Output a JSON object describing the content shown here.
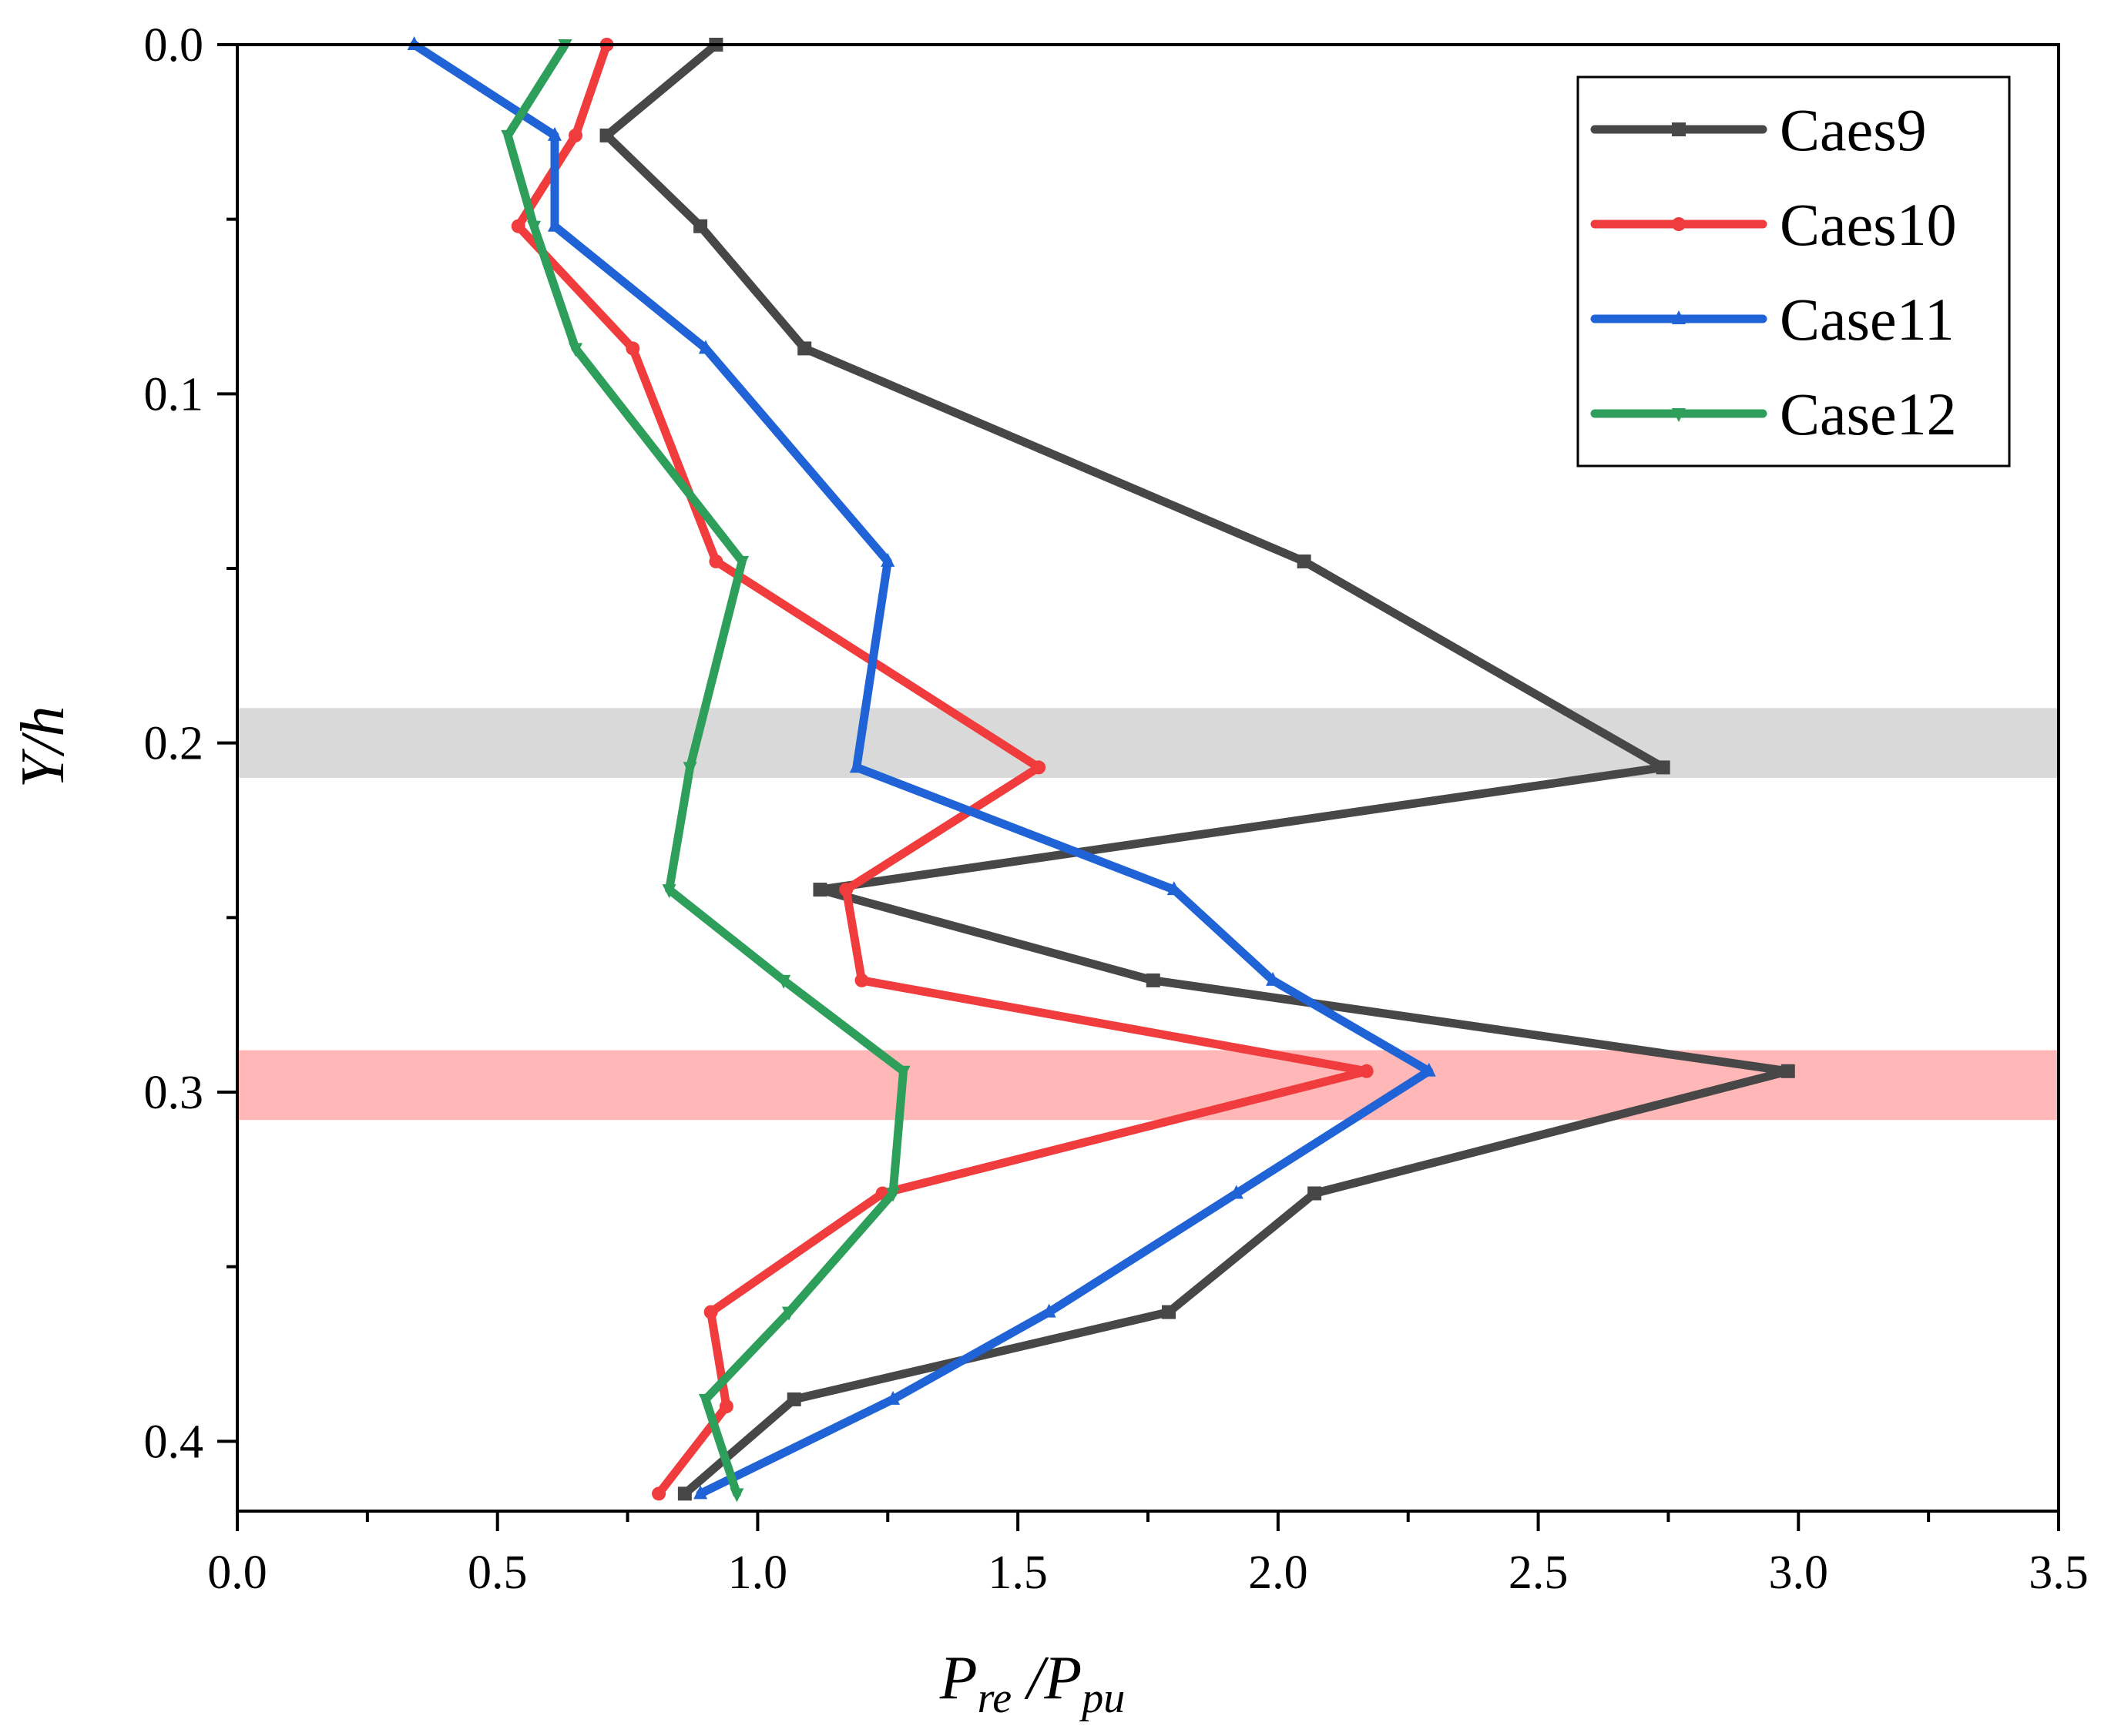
{
  "chart_data": {
    "type": "line",
    "orientation": "y-down",
    "xlabel": {
      "main": "P",
      "sub1": "re",
      "sep": " /P",
      "sub2": "pu"
    },
    "ylabel": {
      "main": "Y/h"
    },
    "xlim": [
      0,
      3.5
    ],
    "ylim": [
      0,
      0.42
    ],
    "xticks": [
      {
        "value": 0.0,
        "label": "0.0"
      },
      {
        "value": 0.5,
        "label": "0.5"
      },
      {
        "value": 1.0,
        "label": "1.0"
      },
      {
        "value": 1.5,
        "label": "1.5"
      },
      {
        "value": 2.0,
        "label": "2.0"
      },
      {
        "value": 2.5,
        "label": "2.5"
      },
      {
        "value": 3.0,
        "label": "3.0"
      },
      {
        "value": 3.5,
        "label": "3.5"
      }
    ],
    "yticks": [
      {
        "value": 0.0,
        "label": "0.0"
      },
      {
        "value": 0.1,
        "label": "0.1"
      },
      {
        "value": 0.2,
        "label": "0.2"
      },
      {
        "value": 0.3,
        "label": "0.3"
      },
      {
        "value": 0.4,
        "label": "0.4"
      }
    ],
    "bands": [
      {
        "name": "gray-band",
        "y_from": 0.19,
        "y_to": 0.21,
        "color": "#bfbfbf",
        "opacity": 0.6
      },
      {
        "name": "red-band",
        "y_from": 0.288,
        "y_to": 0.308,
        "color": "#ff6f6f",
        "opacity": 0.5
      }
    ],
    "legend_position": "top-right",
    "series": [
      {
        "name": "Caes9",
        "color": "#474747",
        "marker": "square",
        "x": [
          0.92,
          0.71,
          0.89,
          1.09,
          2.05,
          2.74,
          1.12,
          1.76,
          2.98,
          2.07,
          1.79,
          1.07,
          0.86
        ],
        "y": [
          0.0,
          0.026,
          0.052,
          0.087,
          0.148,
          0.207,
          0.242,
          0.268,
          0.294,
          0.329,
          0.363,
          0.388,
          0.415
        ]
      },
      {
        "name": "Caes10",
        "color": "#f03c3c",
        "marker": "circle",
        "x": [
          0.71,
          0.65,
          0.54,
          0.76,
          0.92,
          1.54,
          1.17,
          1.2,
          2.17,
          1.24,
          0.91,
          0.94,
          0.81
        ],
        "y": [
          0.0,
          0.026,
          0.052,
          0.087,
          0.148,
          0.207,
          0.242,
          0.268,
          0.294,
          0.329,
          0.363,
          0.39,
          0.415
        ]
      },
      {
        "name": "Case11",
        "color": "#1f63d6",
        "marker": "triangle-up",
        "x": [
          0.34,
          0.61,
          0.61,
          0.9,
          1.25,
          1.19,
          1.8,
          1.99,
          2.29,
          1.92,
          1.56,
          1.26,
          0.89
        ],
        "y": [
          0.0,
          0.026,
          0.052,
          0.087,
          0.148,
          0.207,
          0.242,
          0.268,
          0.294,
          0.329,
          0.363,
          0.388,
          0.415
        ]
      },
      {
        "name": "Case12",
        "color": "#2e9e5b",
        "marker": "triangle-down",
        "x": [
          0.63,
          0.52,
          0.57,
          0.65,
          0.97,
          0.87,
          0.83,
          1.05,
          1.28,
          1.26,
          1.06,
          0.9,
          0.96
        ],
        "y": [
          0.0,
          0.026,
          0.052,
          0.087,
          0.148,
          0.207,
          0.242,
          0.268,
          0.294,
          0.329,
          0.363,
          0.388,
          0.415
        ]
      }
    ]
  }
}
